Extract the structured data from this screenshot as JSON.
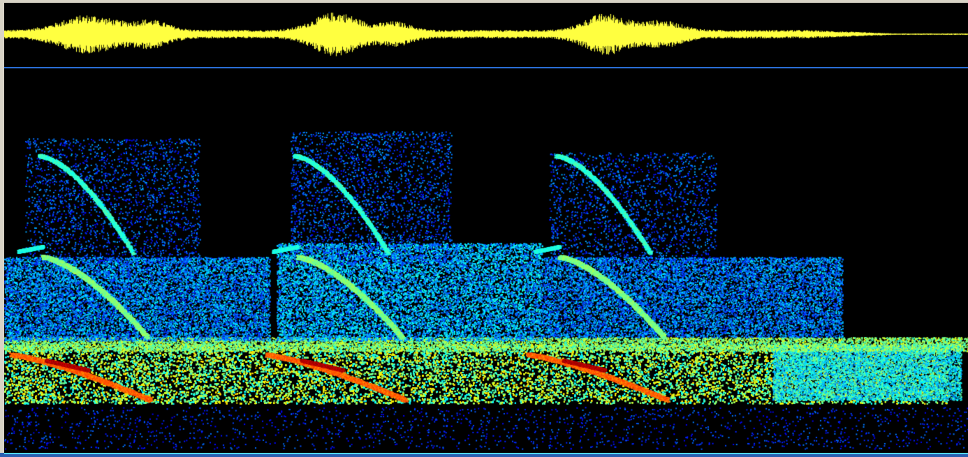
{
  "colors": {
    "frame": "#d8d3c6",
    "background": "#000000",
    "waveform": "#ffff40",
    "divider": "#2a6fd6",
    "spectrogram_low": "#0a2aa8",
    "spectrogram_mid": "#19d2e6",
    "spectrogram_high": "#f5f54a",
    "spectrogram_peak": "#d21414"
  },
  "panels": {
    "waveform": {
      "type": "audio-waveform"
    },
    "spectrogram": {
      "type": "spectrogram",
      "colormap": "jet",
      "calls": 3
    }
  }
}
